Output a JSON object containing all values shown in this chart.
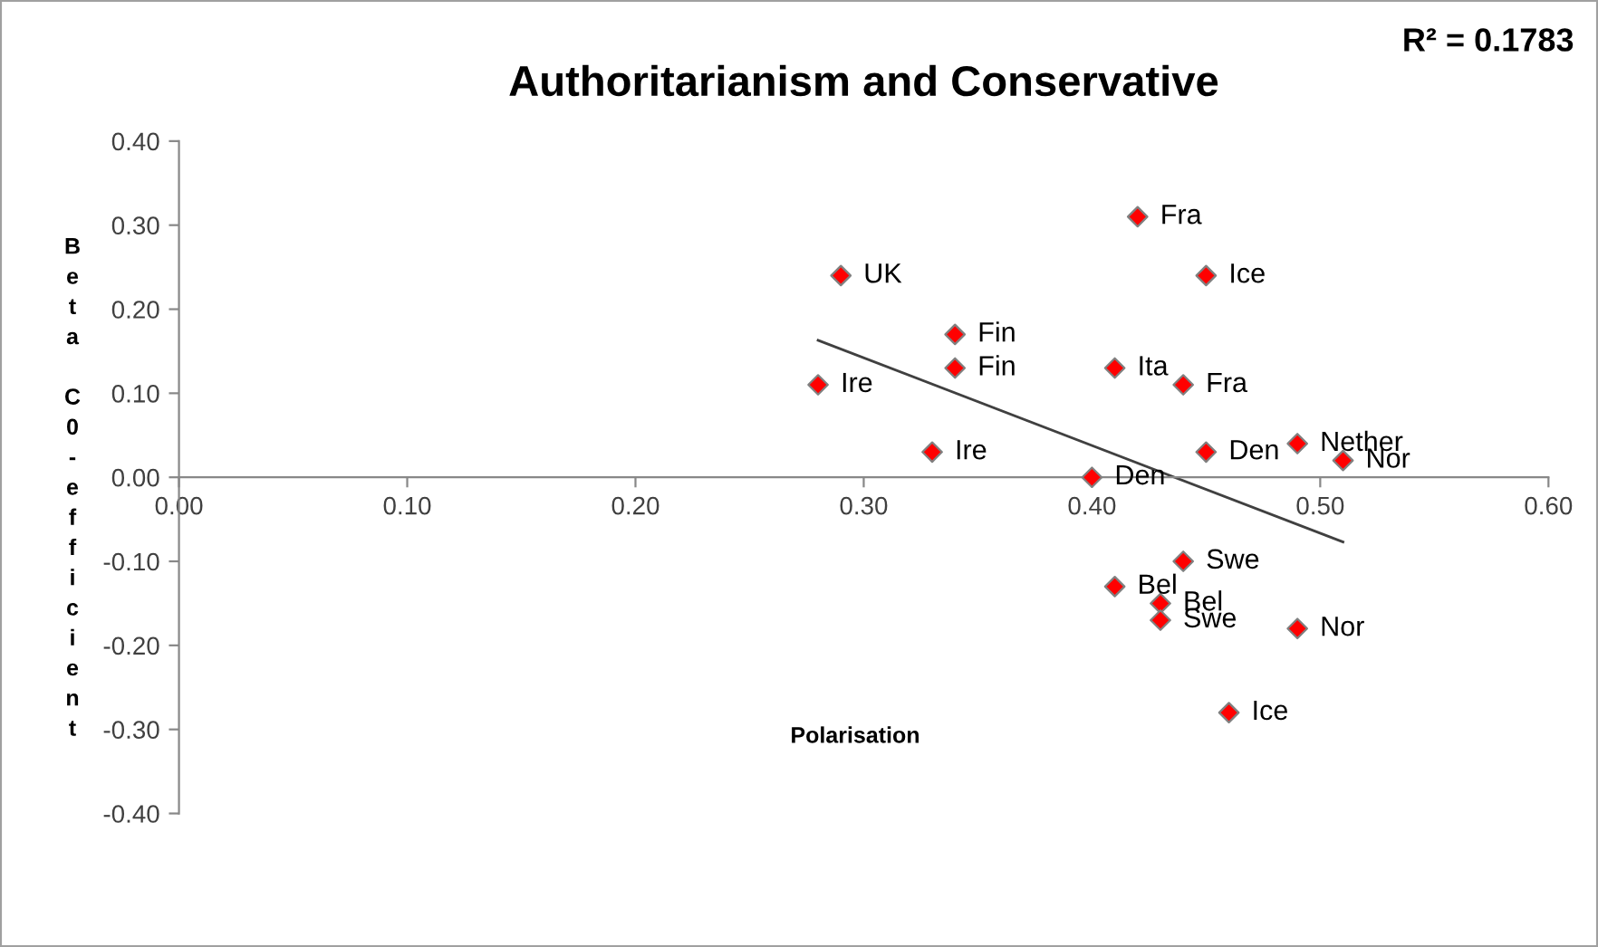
{
  "chart_data": {
    "type": "scatter",
    "title": "Authoritarianism and Conservative",
    "xlabel": "Polarisation",
    "ylabel": "Beta C0-efficient",
    "x": [
      0.42,
      0.29,
      0.45,
      0.34,
      0.34,
      0.41,
      0.28,
      0.44,
      0.33,
      0.45,
      0.49,
      0.51,
      0.4,
      0.44,
      0.41,
      0.43,
      0.43,
      0.49,
      0.46
    ],
    "series": [
      {
        "color": "#ff0000",
        "marker": "diamond",
        "values": [
          0.31,
          0.24,
          0.24,
          0.17,
          0.13,
          0.13,
          0.11,
          0.11,
          0.03,
          0.03,
          0.04,
          0.02,
          0.0,
          -0.1,
          -0.13,
          -0.15,
          -0.17,
          -0.18,
          -0.28
        ]
      },
      {
        "type": "line",
        "color": "#404040",
        "x": [
          0.28,
          0.51
        ],
        "values": [
          0.163,
          -0.077
        ]
      }
    ],
    "annotations": [
      {
        "text": "Fra",
        "x": 0.42,
        "y": 0.31
      },
      {
        "text": "UK",
        "x": 0.29,
        "y": 0.24
      },
      {
        "text": "Ice",
        "x": 0.45,
        "y": 0.24
      },
      {
        "text": "Fin",
        "x": 0.34,
        "y": 0.17
      },
      {
        "text": "Fin",
        "x": 0.34,
        "y": 0.13
      },
      {
        "text": "Ita",
        "x": 0.41,
        "y": 0.13
      },
      {
        "text": "Ire",
        "x": 0.28,
        "y": 0.11
      },
      {
        "text": "Fra",
        "x": 0.44,
        "y": 0.11
      },
      {
        "text": "Ire",
        "x": 0.33,
        "y": 0.03
      },
      {
        "text": "Den",
        "x": 0.45,
        "y": 0.03
      },
      {
        "text": "Nether",
        "x": 0.49,
        "y": 0.04
      },
      {
        "text": "Nor",
        "x": 0.51,
        "y": 0.02
      },
      {
        "text": "Den",
        "x": 0.4,
        "y": 0.0
      },
      {
        "text": "Swe",
        "x": 0.44,
        "y": -0.1
      },
      {
        "text": "Bel",
        "x": 0.41,
        "y": -0.13
      },
      {
        "text": "Bel",
        "x": 0.43,
        "y": -0.15
      },
      {
        "text": "Swe",
        "x": 0.43,
        "y": -0.17
      },
      {
        "text": "Nor",
        "x": 0.49,
        "y": -0.18
      },
      {
        "text": "Ice",
        "x": 0.46,
        "y": -0.28
      },
      "R² = 0.1783"
    ],
    "xlim": [
      0,
      0.6
    ],
    "ylim": [
      -0.4,
      0.4
    ],
    "xticks": [
      {
        "value": 0,
        "label": "0.00"
      },
      {
        "value": 0.1,
        "label": "0.10"
      },
      {
        "value": 0.2,
        "label": "0.20"
      },
      {
        "value": 0.3,
        "label": "0.30"
      },
      {
        "value": 0.4,
        "label": "0.40"
      },
      {
        "value": 0.5,
        "label": "0.50"
      },
      {
        "value": 0.6,
        "label": "0.60"
      }
    ],
    "yticks": [
      {
        "value": -0.4,
        "label": "-0.40"
      },
      {
        "value": -0.3,
        "label": "-0.30"
      },
      {
        "value": -0.2,
        "label": "-0.20"
      },
      {
        "value": -0.1,
        "label": "-0.10"
      },
      {
        "value": 0,
        "label": "0.00"
      },
      {
        "value": 0.1,
        "label": "0.10"
      },
      {
        "value": 0.2,
        "label": "0.20"
      },
      {
        "value": 0.3,
        "label": "0.30"
      },
      {
        "value": 0.4,
        "label": "0.40"
      }
    ],
    "grid": false,
    "legend": false
  }
}
